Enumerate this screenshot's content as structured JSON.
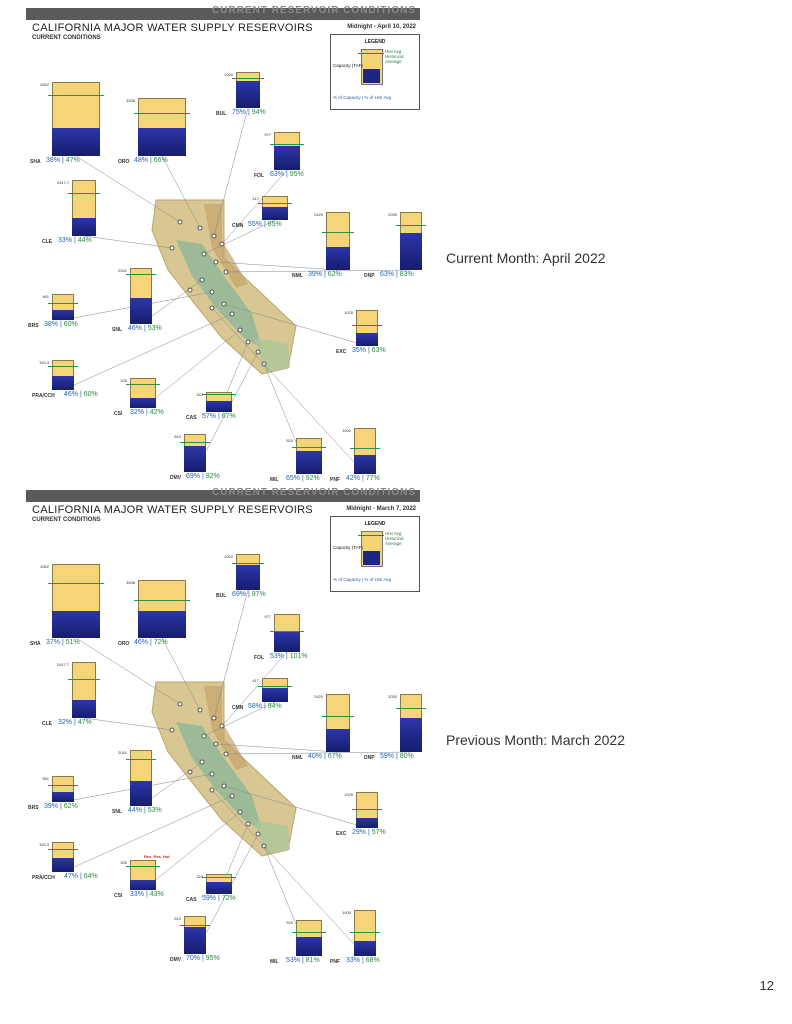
{
  "page_number": "12",
  "panels": [
    {
      "header_text": "CURRENT RESERVOIR CONDITIONS",
      "title": "CALIFORNIA MAJOR WATER SUPPLY RESERVOIRS",
      "subtitle": "CURRENT CONDITIONS",
      "date": "Midnight - April 10, 2022",
      "side_label": "Current Month: April 2022",
      "legend": {
        "title": "LEGEND",
        "capacity": "Capacity (TAF)",
        "hist_avg": "Hist Avg",
        "historical_average": "Historical Average",
        "footer": "% of Capacity  | % of Hist Avg"
      },
      "note": "",
      "reservoirs": [
        {
          "code": "SHA",
          "cap": "4552",
          "pct_cap": "38%",
          "pct_avg": "47%",
          "fill": 0.38,
          "avg": 0.81
        },
        {
          "code": "ORO",
          "cap": "3538",
          "pct_cap": "48%",
          "pct_avg": "66%",
          "fill": 0.48,
          "avg": 0.73
        },
        {
          "code": "BUL",
          "cap": "1000",
          "pct_cap": "75%",
          "pct_avg": "94%",
          "fill": 0.75,
          "avg": 0.8
        },
        {
          "code": "FOL",
          "cap": "977",
          "pct_cap": "63%",
          "pct_avg": "95%",
          "fill": 0.63,
          "avg": 0.66
        },
        {
          "code": "CLE",
          "cap": "2447.7",
          "pct_cap": "33%",
          "pct_avg": "44%",
          "fill": 0.33,
          "avg": 0.75
        },
        {
          "code": "CMN",
          "cap": "417",
          "pct_cap": "55%",
          "pct_avg": "85%",
          "fill": 0.55,
          "avg": 0.65
        },
        {
          "code": "NML",
          "cap": "2420",
          "pct_cap": "39%",
          "pct_avg": "62%",
          "fill": 0.39,
          "avg": 0.63
        },
        {
          "code": "DNP",
          "cap": "2030",
          "pct_cap": "63%",
          "pct_avg": "83%",
          "fill": 0.63,
          "avg": 0.76
        },
        {
          "code": "SNL",
          "cap": "2041",
          "pct_cap": "46%",
          "pct_avg": "53%",
          "fill": 0.46,
          "avg": 0.87
        },
        {
          "code": "BRS",
          "cap": "961",
          "pct_cap": "38%",
          "pct_avg": "60%",
          "fill": 0.38,
          "avg": 0.63
        },
        {
          "code": "EXC",
          "cap": "1025",
          "pct_cap": "35%",
          "pct_avg": "63%",
          "fill": 0.35,
          "avg": 0.56
        },
        {
          "code": "PRA/CCH",
          "cap": "193.3",
          "pct_cap": "46%",
          "pct_avg": "60%",
          "fill": 0.46,
          "avg": 0.77
        },
        {
          "code": "CSI",
          "cap": "325",
          "pct_cap": "32%",
          "pct_avg": "42%",
          "fill": 0.32,
          "avg": 0.76
        },
        {
          "code": "CAS",
          "cap": "323",
          "pct_cap": "57%",
          "pct_avg": "67%",
          "fill": 0.57,
          "avg": 0.85
        },
        {
          "code": "DMV",
          "cap": "810",
          "pct_cap": "69%",
          "pct_avg": "92%",
          "fill": 0.69,
          "avg": 0.75
        },
        {
          "code": "MIL",
          "cap": "520",
          "pct_cap": "65%",
          "pct_avg": "92%",
          "fill": 0.65,
          "avg": 0.71
        },
        {
          "code": "PNF",
          "cap": "1000",
          "pct_cap": "42%",
          "pct_avg": "77%",
          "fill": 0.42,
          "avg": 0.55
        }
      ]
    },
    {
      "header_text": "CURRENT RESERVOIR CONDITIONS",
      "title": "CALIFORNIA MAJOR WATER SUPPLY RESERVOIRS",
      "subtitle": "CURRENT CONDITIONS",
      "date": "Midnight - March 7, 2022",
      "side_label": "Previous Month: March 2022",
      "legend": {
        "title": "LEGEND",
        "capacity": "Capacity (TAF)",
        "hist_avg": "Hist Avg",
        "historical_average": "Historical Average",
        "footer": "% of Capacity  | % of Hist Avg"
      },
      "note": "Res. Res. Hst",
      "reservoirs": [
        {
          "code": "SHA",
          "cap": "4552",
          "pct_cap": "37%",
          "pct_avg": "51%",
          "fill": 0.37,
          "avg": 0.73
        },
        {
          "code": "ORO",
          "cap": "3538",
          "pct_cap": "46%",
          "pct_avg": "72%",
          "fill": 0.46,
          "avg": 0.64
        },
        {
          "code": "BUL",
          "cap": "1000",
          "pct_cap": "69%",
          "pct_avg": "97%",
          "fill": 0.69,
          "avg": 0.71
        },
        {
          "code": "FOL",
          "cap": "977",
          "pct_cap": "53%",
          "pct_avg": "101%",
          "fill": 0.53,
          "avg": 0.52
        },
        {
          "code": "CLE",
          "cap": "2447.7",
          "pct_cap": "32%",
          "pct_avg": "47%",
          "fill": 0.32,
          "avg": 0.68
        },
        {
          "code": "CMN",
          "cap": "417",
          "pct_cap": "58%",
          "pct_avg": "94%",
          "fill": 0.58,
          "avg": 0.62
        },
        {
          "code": "NML",
          "cap": "2420",
          "pct_cap": "40%",
          "pct_avg": "67%",
          "fill": 0.4,
          "avg": 0.6
        },
        {
          "code": "DNP",
          "cap": "2030",
          "pct_cap": "59%",
          "pct_avg": "80%",
          "fill": 0.59,
          "avg": 0.74
        },
        {
          "code": "SNL",
          "cap": "2041",
          "pct_cap": "44%",
          "pct_avg": "53%",
          "fill": 0.44,
          "avg": 0.83
        },
        {
          "code": "BRS",
          "cap": "961",
          "pct_cap": "39%",
          "pct_avg": "62%",
          "fill": 0.39,
          "avg": 0.63
        },
        {
          "code": "EXC",
          "cap": "1025",
          "pct_cap": "29%",
          "pct_avg": "57%",
          "fill": 0.29,
          "avg": 0.51
        },
        {
          "code": "PRA/CCH",
          "cap": "193.3",
          "pct_cap": "47%",
          "pct_avg": "64%",
          "fill": 0.47,
          "avg": 0.73
        },
        {
          "code": "CSI",
          "cap": "325",
          "pct_cap": "33%",
          "pct_avg": "43%",
          "fill": 0.33,
          "avg": 0.77
        },
        {
          "code": "CAS",
          "cap": "323",
          "pct_cap": "59%",
          "pct_avg": "72%",
          "fill": 0.59,
          "avg": 0.82
        },
        {
          "code": "DMV",
          "cap": "810",
          "pct_cap": "70%",
          "pct_avg": "95%",
          "fill": 0.7,
          "avg": 0.74
        },
        {
          "code": "MIL",
          "cap": "520",
          "pct_cap": "53%",
          "pct_avg": "81%",
          "fill": 0.53,
          "avg": 0.65
        },
        {
          "code": "PNF",
          "cap": "1000",
          "pct_cap": "33%",
          "pct_avg": "68%",
          "fill": 0.33,
          "avg": 0.49
        }
      ]
    }
  ]
}
